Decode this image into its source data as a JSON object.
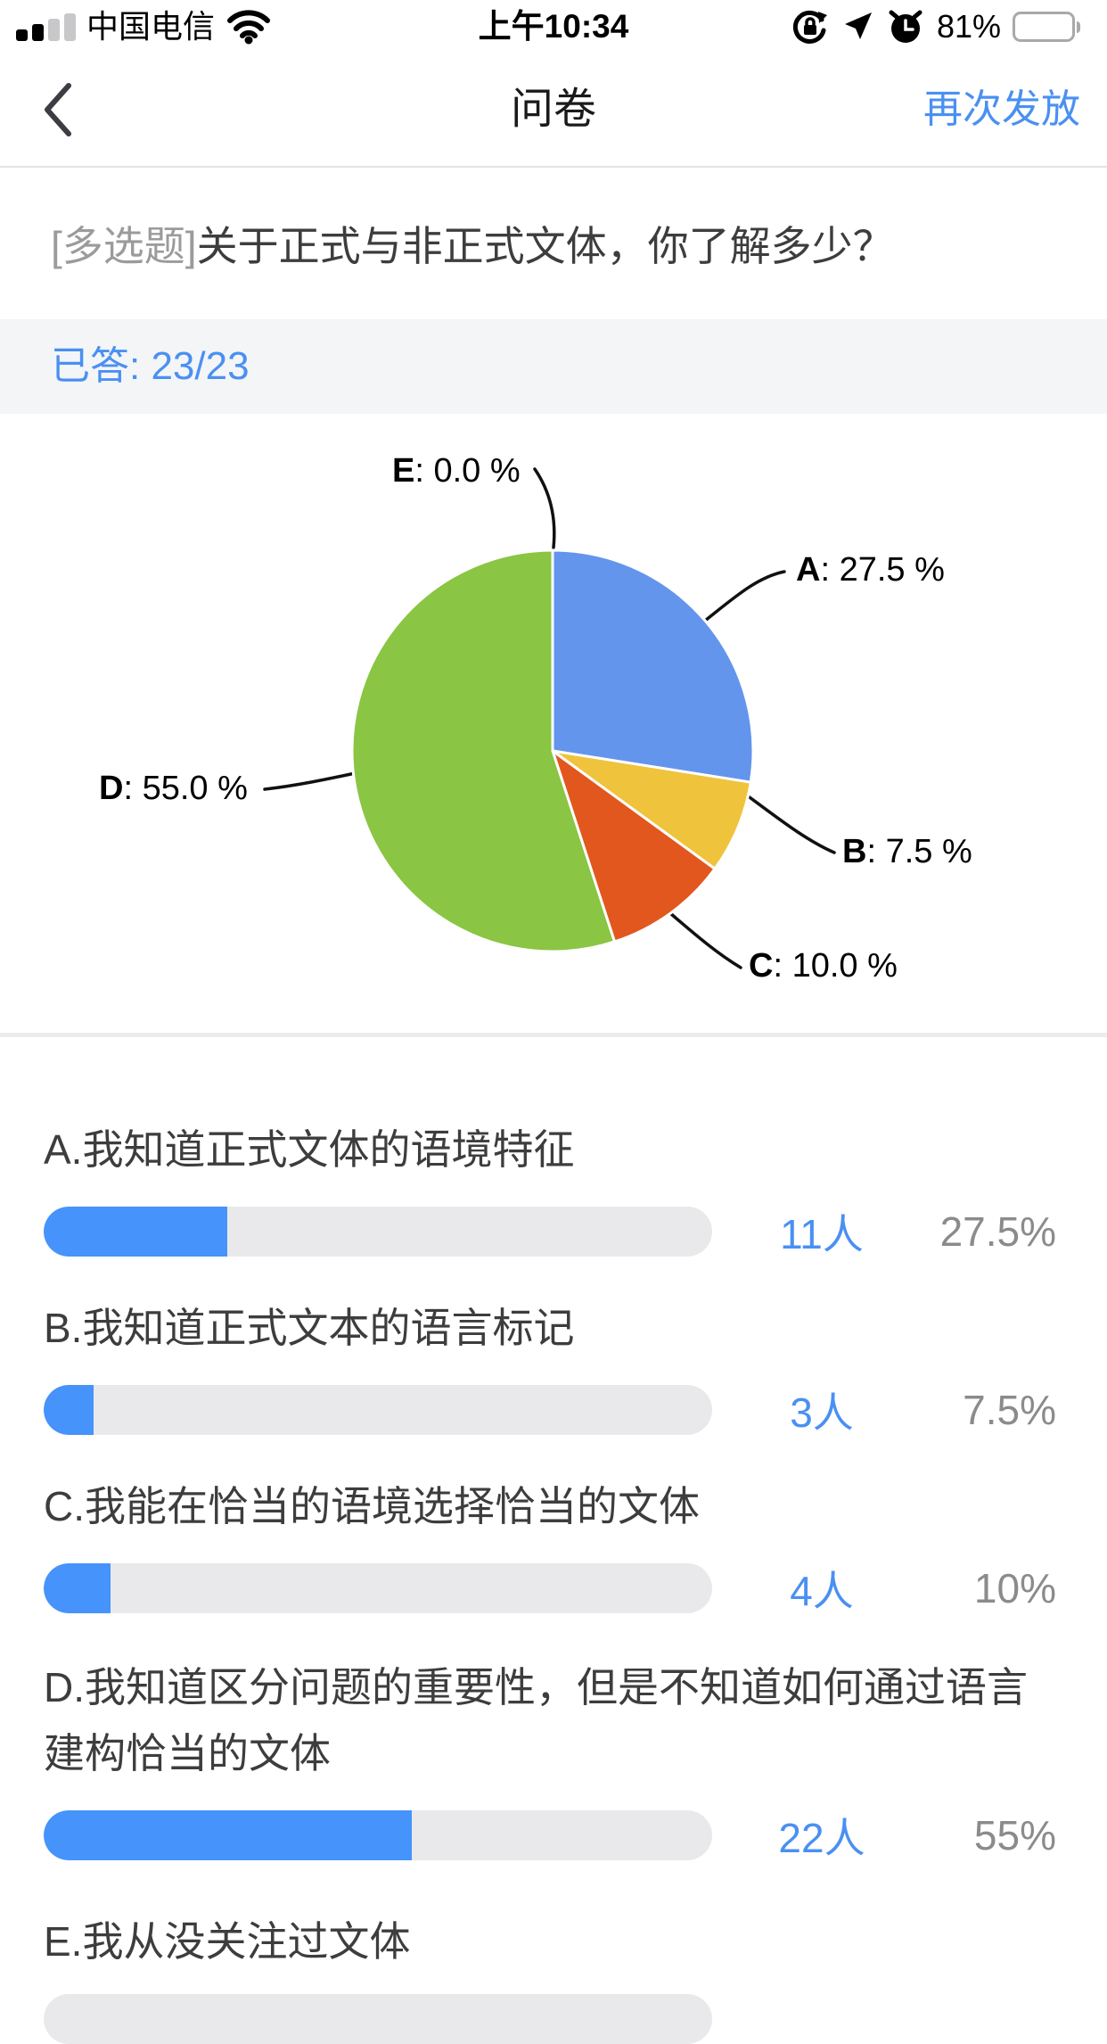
{
  "status_bar": {
    "carrier": "中国电信",
    "time": "上午10:34",
    "battery_percent": "81%"
  },
  "nav_bar": {
    "title": "问卷",
    "action_label": "再次发放"
  },
  "question": {
    "tag": "[多选题]",
    "text": "关于正式与非正式文体，你了解多少？"
  },
  "answered_banner": {
    "text": "已答: 23/23"
  },
  "chart_data": {
    "type": "pie",
    "unit": "%",
    "start_angle_deg": -90,
    "direction": "clockwise",
    "slices": [
      {
        "label": "A",
        "value": 27.5,
        "callout": ": 27.5 %",
        "color": "#6495ed"
      },
      {
        "label": "B",
        "value": 7.5,
        "callout": ": 7.5 %",
        "color": "#efc33b"
      },
      {
        "label": "C",
        "value": 10.0,
        "callout": ": 10.0 %",
        "color": "#e2571e"
      },
      {
        "label": "D",
        "value": 55.0,
        "callout": ": 55.0 %",
        "color": "#8ac543"
      },
      {
        "label": "E",
        "value": 0.0,
        "callout": ": 0.0 %",
        "color": "#cccccc"
      }
    ]
  },
  "options": [
    {
      "title": "A.我知道正式文体的语境特征",
      "count": "11人",
      "percent_label": "27.5%",
      "percent": 27.5
    },
    {
      "title": "B.我知道正式文本的语言标记",
      "count": "3人",
      "percent_label": "7.5%",
      "percent": 7.5
    },
    {
      "title": "C.我能在恰当的语境选择恰当的文体",
      "count": "4人",
      "percent_label": "10%",
      "percent": 10
    },
    {
      "title": "D.我知道区分问题的重要性，但是不知道如何通过语言建构恰当的文体",
      "count": "22人",
      "percent_label": "55%",
      "percent": 55
    },
    {
      "title": "E.我从没关注过文体",
      "count": "",
      "percent_label": "",
      "percent": 0
    }
  ],
  "colors": {
    "accent_blue": "#4a90f2",
    "bar_fill": "#4593fb",
    "bar_track": "#e9e9eb",
    "banner_bg": "#f4f5f7",
    "tag_gray": "#9b9b9b",
    "title_dark": "#3d3d3d",
    "percent_gray": "#8b8b8b"
  }
}
